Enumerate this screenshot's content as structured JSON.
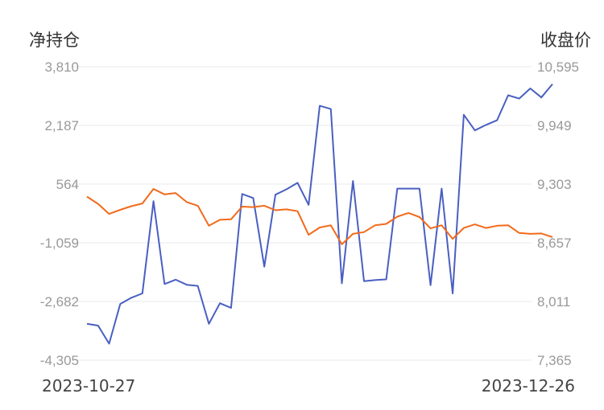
{
  "chart_data": {
    "type": "line",
    "y_left_label": "净持仓",
    "y_right_label": "收盘价",
    "x_start_label": "2023-10-27",
    "x_end_label": "2023-12-26",
    "y_left_ticks": [
      "3,810",
      "2,187",
      "564",
      "-1,059",
      "-2,682",
      "-4,305"
    ],
    "y_right_ticks": [
      "10,595",
      "9,949",
      "9,303",
      "8,657",
      "8,011",
      "7,365"
    ],
    "y_left_range": [
      -4305,
      3810
    ],
    "y_right_range": [
      7365,
      10595
    ],
    "grid": true,
    "series": [
      {
        "axis": "left",
        "color": "#4a5fc1",
        "values": [
          -3300,
          -3350,
          -3850,
          -2750,
          -2580,
          -2460,
          90,
          -2200,
          -2080,
          -2220,
          -2250,
          -3300,
          -2730,
          -2860,
          290,
          180,
          -1720,
          270,
          420,
          600,
          -10,
          2730,
          2640,
          -2180,
          650,
          -2120,
          -2090,
          -2070,
          440,
          440,
          440,
          -2230,
          440,
          -2460,
          2480,
          2050,
          2200,
          2330,
          3020,
          2930,
          3210,
          2960,
          3330
        ]
      },
      {
        "axis": "right",
        "color": "#f26a1b",
        "values": [
          9165,
          9085,
          8975,
          9020,
          9060,
          9090,
          9250,
          9190,
          9205,
          9105,
          9065,
          8845,
          8910,
          8915,
          9055,
          9050,
          9065,
          9015,
          9025,
          9005,
          8745,
          8825,
          8850,
          8640,
          8755,
          8775,
          8850,
          8865,
          8945,
          8985,
          8940,
          8815,
          8850,
          8700,
          8820,
          8860,
          8820,
          8845,
          8850,
          8765,
          8755,
          8760,
          8720
        ]
      }
    ]
  }
}
